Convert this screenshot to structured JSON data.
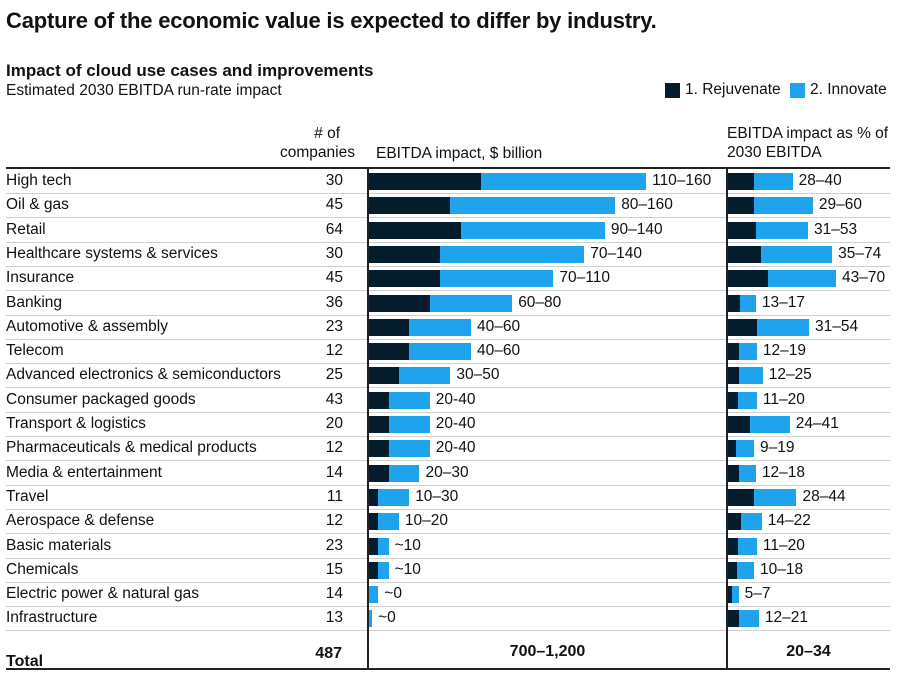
{
  "title": "Capture of the economic value is expected to differ by industry.",
  "subtitle": "Impact of cloud use cases and improvements",
  "subtitle2": "Estimated 2030 EBITDA run-rate impact",
  "legend": [
    {
      "name": "1. Rejuvenate",
      "color": "#051c2c"
    },
    {
      "name": "2. Innovate",
      "color": "#1ea3ec"
    }
  ],
  "headers": {
    "count": "# of companies",
    "impact": "EBITDA impact, $ billion",
    "pct": "EBITDA impact as % of 2030 EBITDA"
  },
  "chart_data": {
    "type": "bar",
    "orientation": "horizontal-stacked",
    "categories": [
      "High tech",
      "Oil & gas",
      "Retail",
      "Healthcare systems & services",
      "Insurance",
      "Banking",
      "Automotive & assembly",
      "Telecom",
      "Advanced electronics & semiconductors",
      "Consumer packaged goods",
      "Transport & logistics",
      "Pharmaceuticals & medical products",
      "Media & entertainment",
      "Travel",
      "Aerospace & defense",
      "Basic materials",
      "Chemicals",
      "Electric power & natural gas",
      "Infrastructure"
    ],
    "companies": [
      30,
      45,
      64,
      30,
      45,
      36,
      23,
      12,
      25,
      43,
      20,
      12,
      14,
      11,
      12,
      23,
      15,
      14,
      13
    ],
    "impact_billion": {
      "labels": [
        "110–160",
        "80–160",
        "90–140",
        "70–140",
        "70–110",
        "60–80",
        "40–60",
        "40–60",
        "30–50",
        "20-40",
        "20-40",
        "20-40",
        "20–30",
        "10–30",
        "10–20",
        "~10",
        "~10",
        "~0",
        "~0"
      ],
      "series": [
        {
          "name": "1. Rejuvenate",
          "values": [
            55,
            40,
            45,
            35,
            35,
            30,
            20,
            20,
            15,
            10,
            10,
            10,
            10,
            5,
            5,
            5,
            5,
            0,
            0
          ]
        },
        {
          "name": "2. Innovate",
          "values": [
            80,
            80,
            70,
            70,
            55,
            40,
            30,
            30,
            25,
            20,
            20,
            20,
            15,
            15,
            10,
            5,
            5,
            5,
            2
          ]
        }
      ]
    },
    "impact_pct": {
      "labels": [
        "28–40",
        "29–60",
        "31–53",
        "35–74",
        "43–70",
        "13–17",
        "31–54",
        "12–19",
        "12–25",
        "11–20",
        "24–41",
        "9–19",
        "12–18",
        "28–44",
        "14–22",
        "11–20",
        "10–18",
        "5–7",
        "12–21"
      ],
      "series": [
        {
          "name": "1. Rejuvenate",
          "values": [
            14,
            14,
            15,
            17.5,
            21.5,
            6.5,
            15.5,
            6,
            6,
            5.5,
            12,
            4.5,
            6,
            14,
            7,
            5.5,
            5,
            2.5,
            6
          ]
        },
        {
          "name": "2. Innovate",
          "values": [
            20,
            30.5,
            27,
            37,
            35,
            8.5,
            27,
            9.5,
            12.5,
            10,
            20.5,
            9.5,
            9,
            22,
            11,
            10,
            9,
            3.5,
            10.5
          ]
        }
      ]
    },
    "total": {
      "label": "Total",
      "companies": "487",
      "impact": "700–1,200",
      "pct": "20–34"
    }
  }
}
